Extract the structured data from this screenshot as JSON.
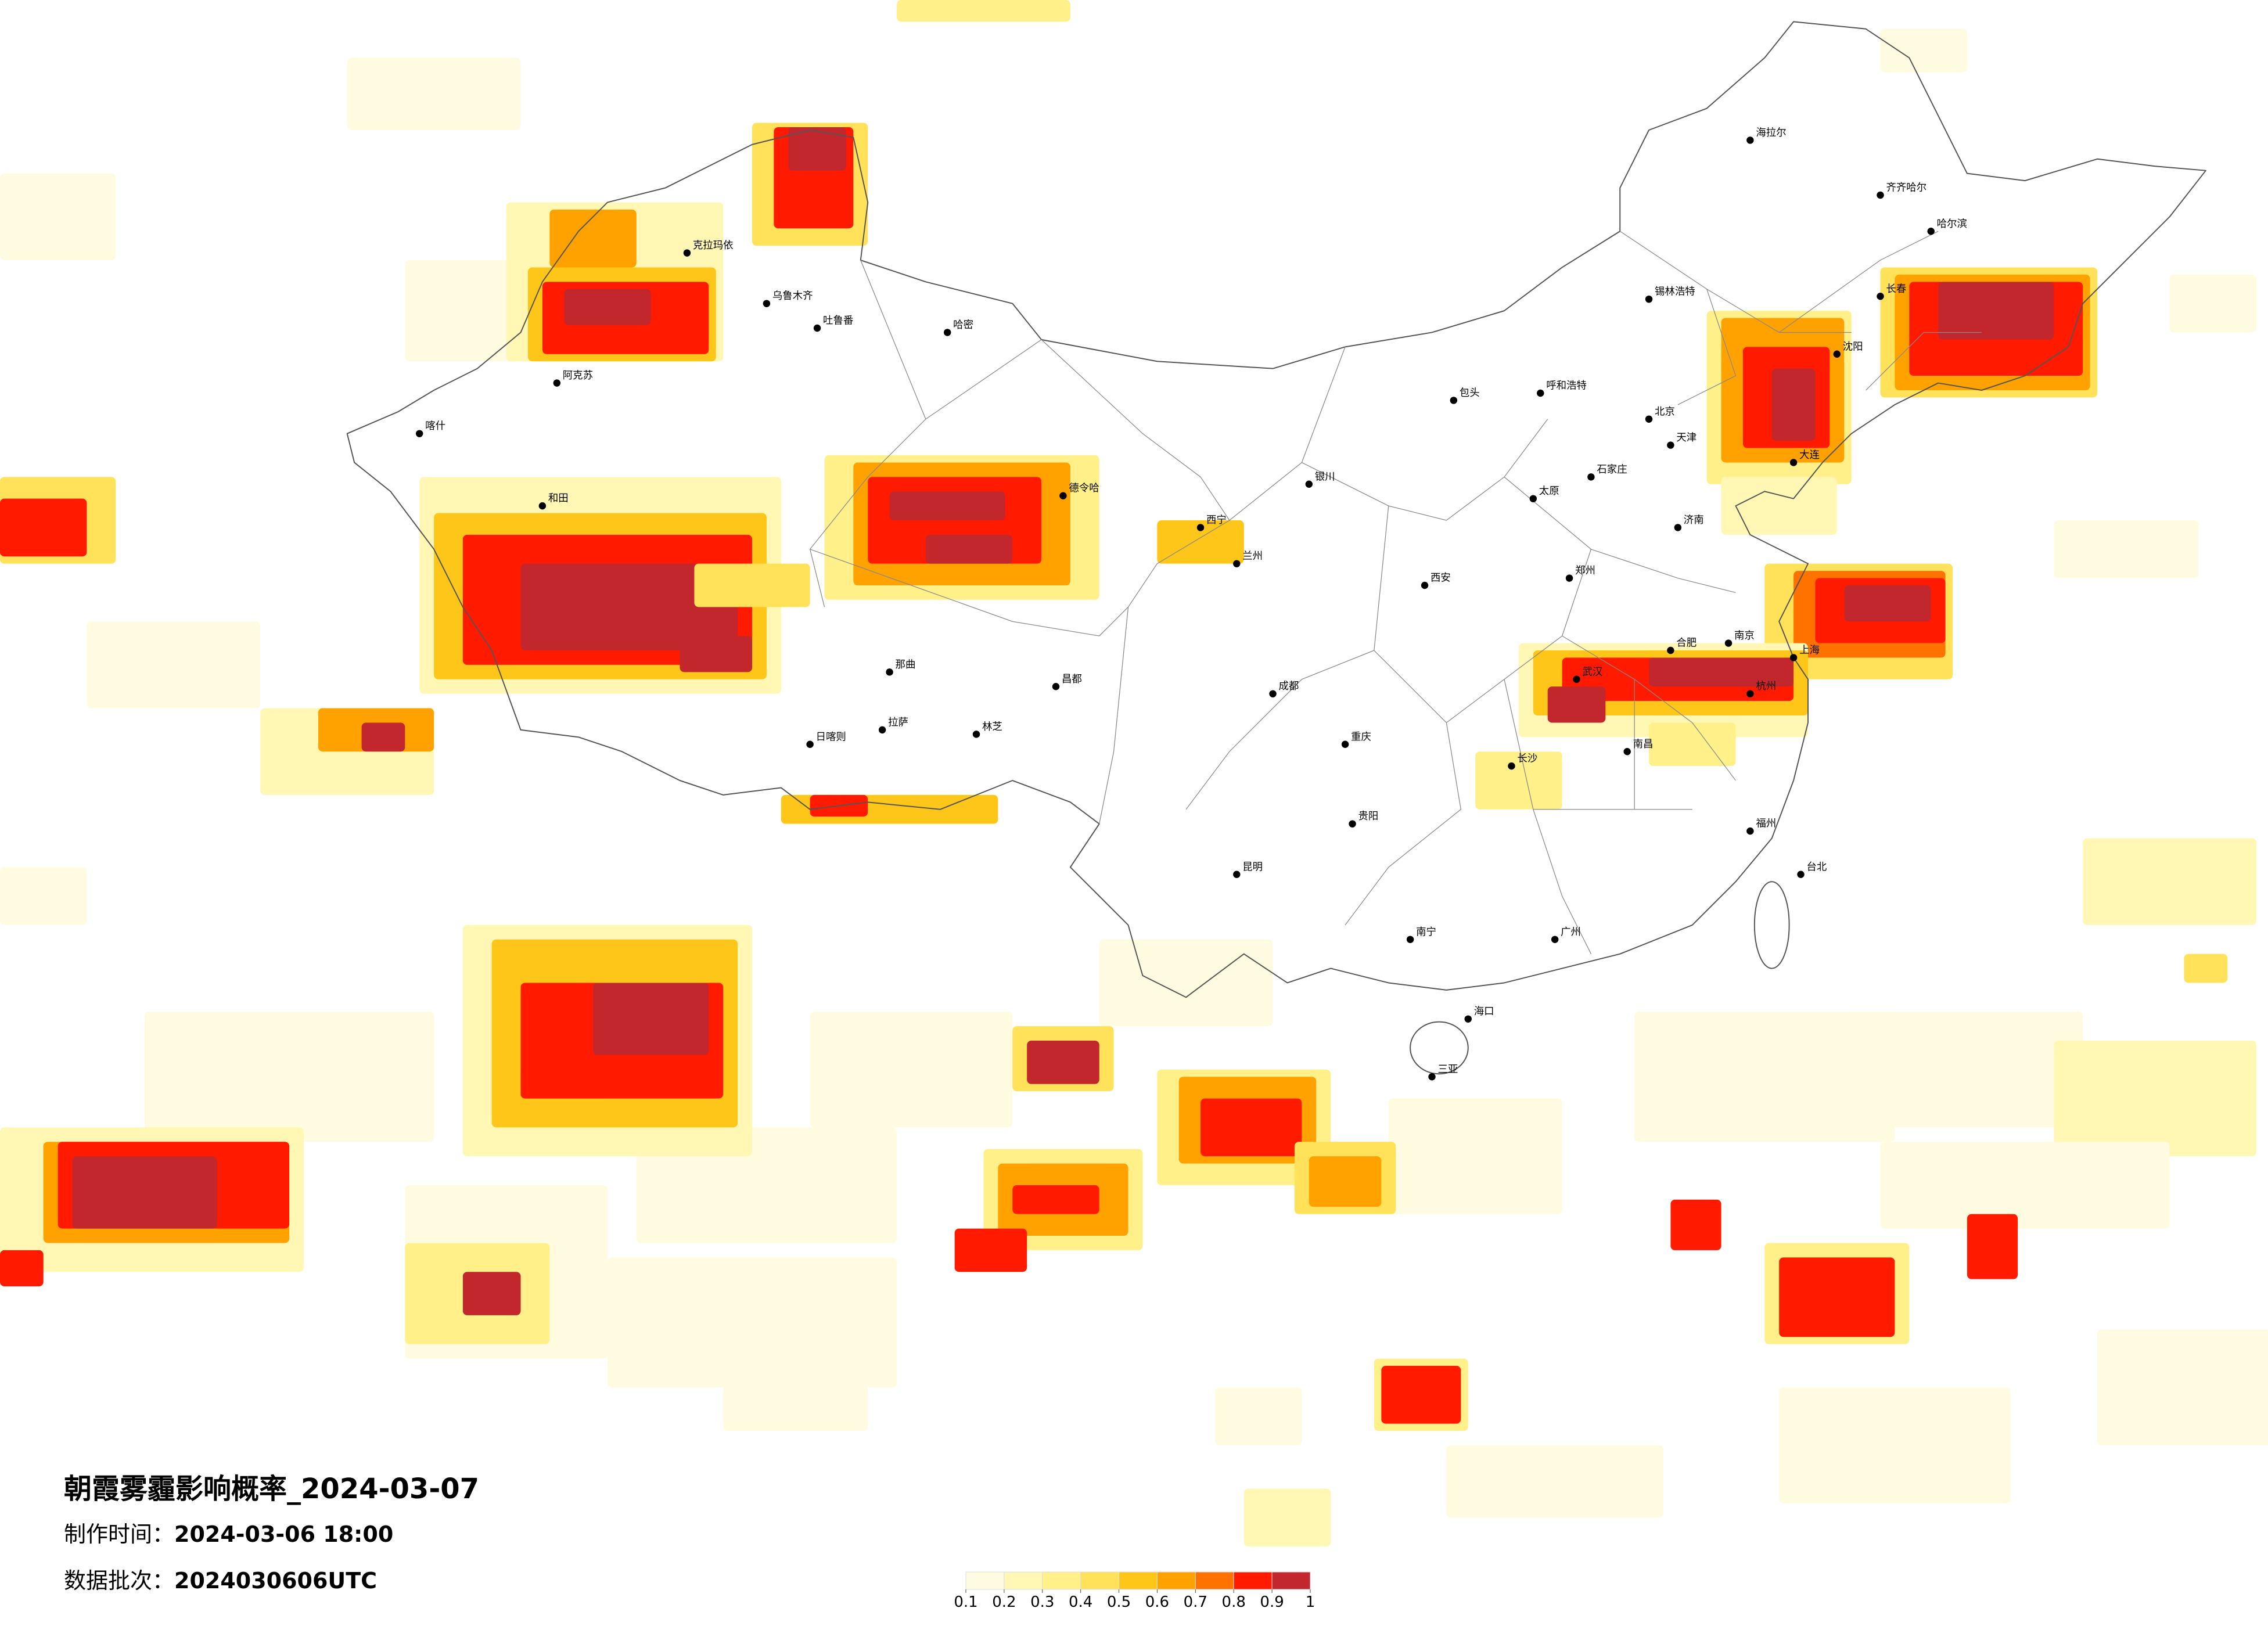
{
  "title": "朝霞雾霾影响概率_2024-03-07",
  "made_time": {
    "label": "制作时间：",
    "value": "2024-03-06 18:00"
  },
  "batch": {
    "label": "数据批次：",
    "value": "2024030606UTC"
  },
  "legend": {
    "ticks": [
      0.1,
      0.2,
      0.3,
      0.4,
      0.5,
      0.6,
      0.7,
      0.8,
      0.9,
      1
    ],
    "colors": [
      "#fffbe1",
      "#fff7b3",
      "#fff08a",
      "#ffe15a",
      "#ffc61a",
      "#ffa200",
      "#ff7200",
      "#ff1a00",
      "#c1272d"
    ]
  },
  "cities": [
    "乌鲁木齐",
    "克拉玛依",
    "喀什",
    "和田",
    "阿克苏",
    "哈密",
    "吐鲁番",
    "拉萨",
    "日喀则",
    "林芝",
    "昌都",
    "那曲",
    "德令哈",
    "西宁",
    "兰州",
    "银川",
    "呼和浩特",
    "包头",
    "北京",
    "天津",
    "石家庄",
    "太原",
    "济南",
    "郑州",
    "西安",
    "成都",
    "重庆",
    "贵阳",
    "昆明",
    "南宁",
    "广州",
    "长沙",
    "武汉",
    "南昌",
    "合肥",
    "南京",
    "上海",
    "杭州",
    "福州",
    "台北",
    "海口",
    "三亚",
    "沈阳",
    "长春",
    "哈尔滨",
    "齐齐哈尔",
    "海拉尔",
    "锡林浩特",
    "大连"
  ]
}
